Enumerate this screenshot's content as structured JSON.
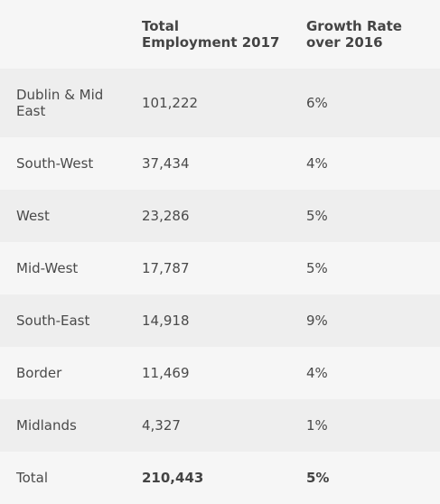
{
  "table": {
    "headers": {
      "region": "",
      "employment_line1": "Total",
      "employment_line2": "Employment 2017",
      "growth_line1": "Growth Rate",
      "growth_line2": "over 2016"
    },
    "rows": [
      {
        "region": "Dublin & Mid East",
        "employment": "101,222",
        "growth": "6%"
      },
      {
        "region": "South-West",
        "employment": "37,434",
        "growth": "4%"
      },
      {
        "region": "West",
        "employment": "23,286",
        "growth": "5%"
      },
      {
        "region": "Mid-West",
        "employment": "17,787",
        "growth": "5%"
      },
      {
        "region": "South-East",
        "employment": "14,918",
        "growth": "9%"
      },
      {
        "region": "Border",
        "employment": "11,469",
        "growth": "4%"
      },
      {
        "region": "Midlands",
        "employment": "4,327",
        "growth": "1%"
      }
    ],
    "total": {
      "region": "Total",
      "employment": "210,443",
      "growth": "5%"
    }
  }
}
